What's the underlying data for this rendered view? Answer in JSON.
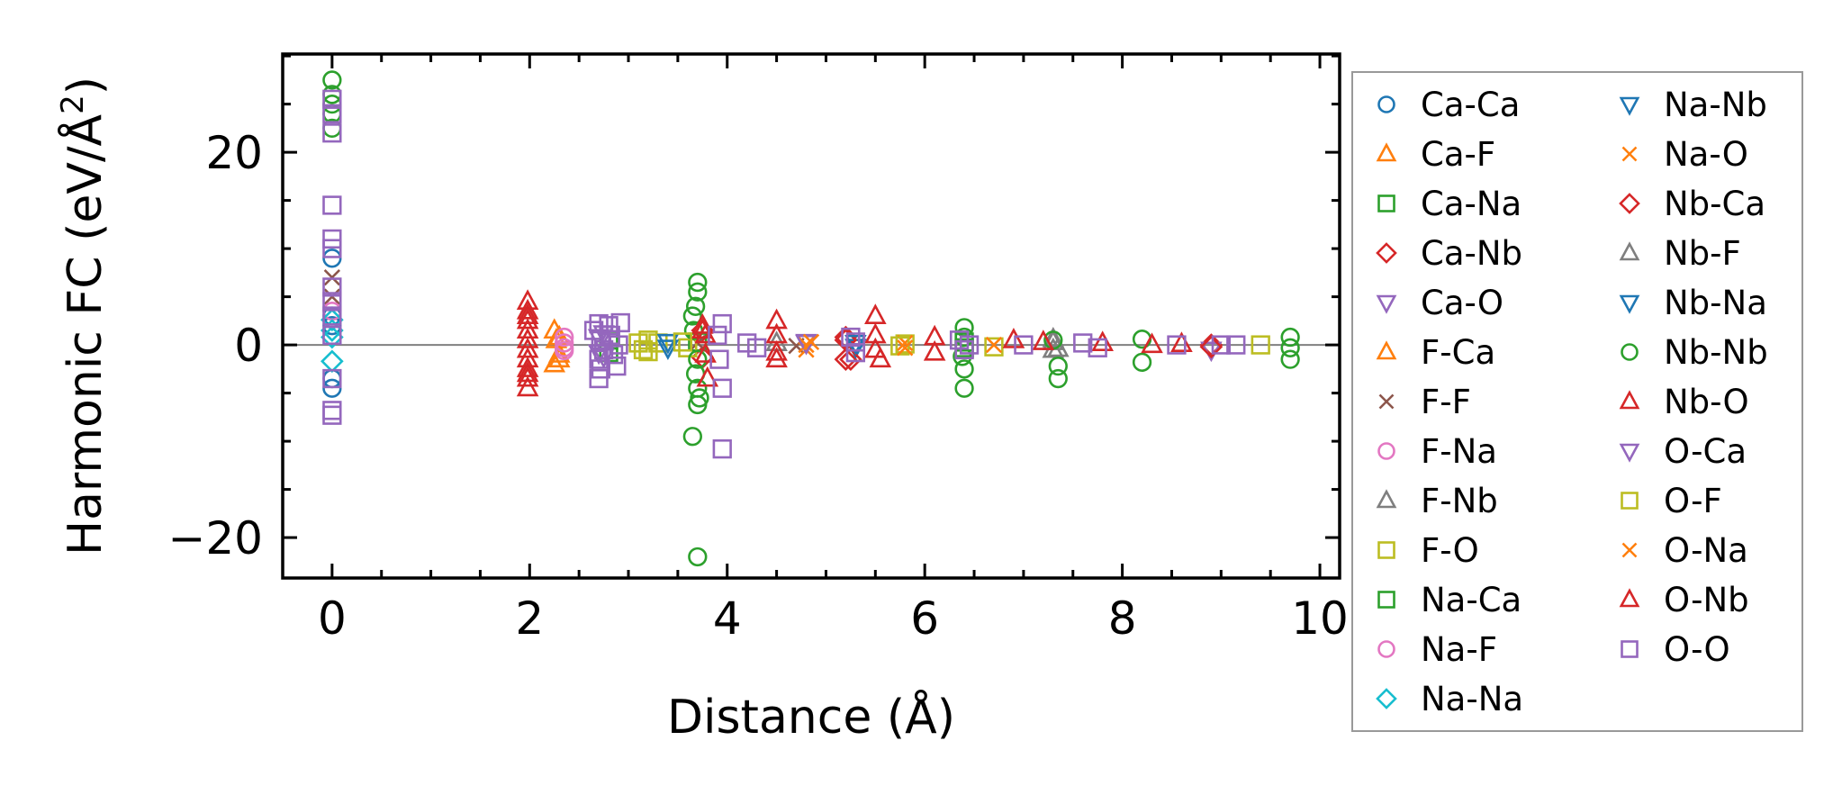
{
  "chart_data": {
    "type": "scatter",
    "xlabel": "Distance (Å)",
    "ylabel_prefix": "Harmonic FC (eV/Å",
    "ylabel_sup": "2",
    "ylabel_suffix": ")",
    "xlim": [
      -0.5,
      10.2
    ],
    "ylim": [
      -24.2,
      30.2
    ],
    "x_ticks": [
      0,
      2,
      4,
      6,
      8,
      10
    ],
    "x_tick_labels": [
      "0",
      "2",
      "4",
      "6",
      "8",
      "10"
    ],
    "y_ticks": [
      -20,
      0,
      20
    ],
    "y_tick_labels": [
      "−20",
      "0",
      "20"
    ],
    "x_minor_step": 0.5,
    "y_minor_step": 5,
    "zero_line": true,
    "grid": false,
    "legend_position": "outside-right",
    "legend_columns": 2,
    "series": [
      {
        "name": "Ca-Ca",
        "marker": "circle",
        "color": "#1f77b4",
        "points": [
          [
            0,
            9
          ],
          [
            0,
            -4.5
          ],
          [
            0,
            3
          ],
          [
            0,
            -3.5
          ],
          [
            0,
            2
          ]
        ]
      },
      {
        "name": "Ca-F",
        "marker": "triangle-up",
        "color": "#ff7f0e",
        "points": [
          [
            2.25,
            1.5
          ],
          [
            2.25,
            -2
          ],
          [
            2.27,
            0.5
          ],
          [
            2.3,
            -1
          ]
        ]
      },
      {
        "name": "Ca-Na",
        "marker": "square",
        "color": "#2ca02c",
        "points": [
          [
            2.8,
            0.5
          ],
          [
            2.8,
            -0.8
          ],
          [
            3.7,
            0.3
          ],
          [
            6.4,
            -0.4
          ]
        ]
      },
      {
        "name": "Ca-Nb",
        "marker": "diamond",
        "color": "#d62728",
        "points": [
          [
            3.75,
            1.5
          ],
          [
            3.75,
            -1.3
          ],
          [
            5.2,
            0.8
          ],
          [
            5.2,
            -1.5
          ],
          [
            8.9,
            0
          ]
        ]
      },
      {
        "name": "Ca-O",
        "marker": "triangle-down",
        "color": "#9467bd",
        "points": [
          [
            2.7,
            0.8
          ],
          [
            2.7,
            -0.8
          ],
          [
            4.8,
            0.3
          ],
          [
            8.9,
            -0.5
          ]
        ]
      },
      {
        "name": "F-Ca",
        "marker": "triangle-up",
        "color": "#ff7f0e",
        "points": [
          [
            2.3,
            0.8
          ],
          [
            2.3,
            -1.5
          ]
        ]
      },
      {
        "name": "F-F",
        "marker": "x",
        "color": "#8c564b",
        "points": [
          [
            0,
            7
          ],
          [
            0,
            5
          ],
          [
            3.7,
            0.2
          ],
          [
            4.7,
            -0.1
          ]
        ]
      },
      {
        "name": "F-Na",
        "marker": "circle",
        "color": "#e377c2",
        "points": [
          [
            2.35,
            0.2
          ],
          [
            2.35,
            -0.6
          ],
          [
            0,
            3.5
          ]
        ]
      },
      {
        "name": "F-Nb",
        "marker": "triangle-up",
        "color": "#7f7f7f",
        "points": [
          [
            7.3,
            0.3
          ],
          [
            7.3,
            -0.5
          ],
          [
            4.5,
            0.2
          ]
        ]
      },
      {
        "name": "F-O",
        "marker": "square",
        "color": "#bcbd22",
        "points": [
          [
            3.2,
            0.5
          ],
          [
            3.2,
            -0.7
          ],
          [
            3.3,
            0.2
          ],
          [
            3.6,
            -0.3
          ],
          [
            5.8,
            0.1
          ],
          [
            6.7,
            -0.2
          ],
          [
            9.4,
            0
          ]
        ]
      },
      {
        "name": "Na-Ca",
        "marker": "square",
        "color": "#2ca02c",
        "points": [
          [
            6.4,
            0.3
          ],
          [
            6.4,
            -0.3
          ]
        ]
      },
      {
        "name": "Na-F",
        "marker": "circle",
        "color": "#e377c2",
        "points": [
          [
            2.35,
            0.8
          ],
          [
            2.35,
            -0.3
          ]
        ]
      },
      {
        "name": "Na-Na",
        "marker": "diamond",
        "color": "#17becf",
        "points": [
          [
            0,
            1.5
          ],
          [
            0,
            -1.7
          ],
          [
            0,
            2.6
          ],
          [
            0,
            0.8
          ]
        ]
      },
      {
        "name": "Na-Nb",
        "marker": "triangle-down",
        "color": "#1f77b4",
        "points": [
          [
            3.4,
            0.3
          ],
          [
            5.3,
            -0.2
          ]
        ]
      },
      {
        "name": "Na-O",
        "marker": "x",
        "color": "#ff7f0e",
        "points": [
          [
            4.8,
            0
          ],
          [
            4.8,
            -0.5
          ],
          [
            5.8,
            0.2
          ],
          [
            6.7,
            0
          ]
        ]
      },
      {
        "name": "Nb-Ca",
        "marker": "diamond",
        "color": "#d62728",
        "points": [
          [
            5.2,
            0.5
          ],
          [
            5.25,
            -1.5
          ],
          [
            8.9,
            -0.2
          ]
        ]
      },
      {
        "name": "Nb-F",
        "marker": "triangle-up",
        "color": "#7f7f7f",
        "points": [
          [
            7.3,
            0.6
          ],
          [
            7.35,
            -0.4
          ]
        ]
      },
      {
        "name": "Nb-Na",
        "marker": "triangle-down",
        "color": "#1f77b4",
        "points": [
          [
            3.4,
            -0.3
          ],
          [
            5.3,
            0.2
          ]
        ]
      },
      {
        "name": "Nb-Nb",
        "marker": "circle",
        "color": "#2ca02c",
        "points": [
          [
            0,
            27.5
          ],
          [
            0,
            26
          ],
          [
            0,
            25
          ],
          [
            0,
            24
          ],
          [
            0,
            22.5
          ],
          [
            3.65,
            -9.5
          ],
          [
            3.7,
            -22
          ],
          [
            3.7,
            6.5
          ],
          [
            3.7,
            5.5
          ],
          [
            3.68,
            4
          ],
          [
            3.65,
            3
          ],
          [
            3.7,
            -4.5
          ],
          [
            3.72,
            -5.5
          ],
          [
            3.7,
            -6.2
          ],
          [
            3.68,
            -3
          ],
          [
            3.66,
            1.5
          ],
          [
            3.7,
            -1.5
          ],
          [
            6.4,
            1.8
          ],
          [
            6.4,
            -4.5
          ],
          [
            6.4,
            -2.5
          ],
          [
            6.4,
            0.8
          ],
          [
            6.38,
            -1.2
          ],
          [
            7.35,
            -3.5
          ],
          [
            7.35,
            -2.2
          ],
          [
            7.3,
            0.5
          ],
          [
            8.2,
            -1.8
          ],
          [
            8.2,
            0.6
          ],
          [
            9.7,
            0.8
          ],
          [
            9.7,
            -1.5
          ],
          [
            9.7,
            -0.3
          ]
        ]
      },
      {
        "name": "Nb-O",
        "marker": "triangle-up",
        "color": "#d62728",
        "points": [
          [
            1.98,
            4.5
          ],
          [
            1.98,
            3.5
          ],
          [
            1.98,
            2.5
          ],
          [
            1.98,
            1.5
          ],
          [
            1.98,
            0.5
          ],
          [
            1.98,
            -0.5
          ],
          [
            1.98,
            -1.5
          ],
          [
            1.98,
            -2.5
          ],
          [
            1.98,
            -3.5
          ],
          [
            1.98,
            -4.5
          ],
          [
            3.75,
            2
          ],
          [
            3.78,
            1
          ],
          [
            3.78,
            -1
          ],
          [
            3.8,
            -3.5
          ],
          [
            4.5,
            2.5
          ],
          [
            4.5,
            1
          ],
          [
            4.5,
            -1.5
          ],
          [
            5.5,
            3
          ],
          [
            5.5,
            1
          ],
          [
            5.55,
            -1.5
          ],
          [
            6.1,
            0.8
          ],
          [
            6.1,
            -0.8
          ],
          [
            6.9,
            0.5
          ],
          [
            7.2,
            0.3
          ],
          [
            7.8,
            0.2
          ],
          [
            8.3,
            0
          ],
          [
            8.6,
            0.1
          ]
        ]
      },
      {
        "name": "O-Ca",
        "marker": "triangle-down",
        "color": "#9467bd",
        "points": [
          [
            2.75,
            1.2
          ],
          [
            2.75,
            -1.2
          ],
          [
            4.8,
            0.2
          ]
        ]
      },
      {
        "name": "O-F",
        "marker": "square",
        "color": "#bcbd22",
        "points": [
          [
            3.1,
            0.2
          ],
          [
            3.15,
            -0.5
          ],
          [
            3.55,
            0.3
          ],
          [
            5.75,
            -0.1
          ]
        ]
      },
      {
        "name": "O-Na",
        "marker": "x",
        "color": "#ff7f0e",
        "points": [
          [
            4.85,
            0.3
          ],
          [
            5.8,
            -0.3
          ]
        ]
      },
      {
        "name": "O-Nb",
        "marker": "triangle-up",
        "color": "#d62728",
        "points": [
          [
            1.98,
            3
          ],
          [
            1.98,
            -3
          ],
          [
            3.75,
            1.5
          ],
          [
            4.5,
            -0.8
          ],
          [
            5.5,
            -0.5
          ]
        ]
      },
      {
        "name": "O-O",
        "marker": "square",
        "color": "#9467bd",
        "points": [
          [
            0,
            25.5
          ],
          [
            0,
            24
          ],
          [
            0,
            22
          ],
          [
            0,
            14.5
          ],
          [
            0,
            11
          ],
          [
            0,
            10
          ],
          [
            0,
            6
          ],
          [
            0,
            4.5
          ],
          [
            0,
            3
          ],
          [
            0,
            1
          ],
          [
            0,
            -3.5
          ],
          [
            0,
            -6.8
          ],
          [
            0,
            -7.3
          ],
          [
            2.65,
            1.5
          ],
          [
            2.7,
            2.2
          ],
          [
            2.72,
            0.5
          ],
          [
            2.75,
            -0.5
          ],
          [
            2.7,
            -1.5
          ],
          [
            2.72,
            -2.5
          ],
          [
            2.7,
            -3.5
          ],
          [
            2.8,
            2
          ],
          [
            2.82,
            1
          ],
          [
            2.85,
            -1
          ],
          [
            2.88,
            -2.2
          ],
          [
            2.9,
            0
          ],
          [
            2.92,
            2.3
          ],
          [
            3.95,
            2.2
          ],
          [
            3.95,
            -4.5
          ],
          [
            3.95,
            -10.8
          ],
          [
            3.9,
            1
          ],
          [
            3.92,
            -1.5
          ],
          [
            4.2,
            0.2
          ],
          [
            4.3,
            -0.3
          ],
          [
            5.25,
            0.8
          ],
          [
            5.3,
            -0.8
          ],
          [
            5.3,
            0.3
          ],
          [
            6.35,
            0.5
          ],
          [
            6.4,
            -0.5
          ],
          [
            6.45,
            0
          ],
          [
            7.0,
            0
          ],
          [
            7.6,
            0.2
          ],
          [
            7.75,
            -0.3
          ],
          [
            8.55,
            0
          ],
          [
            9.0,
            0
          ],
          [
            9.15,
            0
          ]
        ]
      }
    ]
  }
}
